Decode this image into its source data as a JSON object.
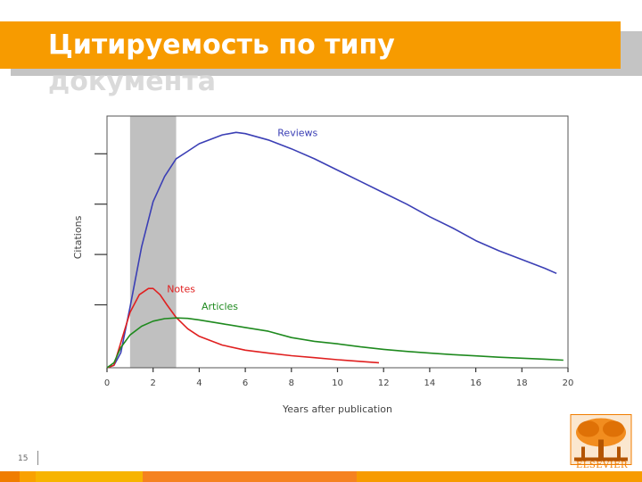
{
  "slide": {
    "title": "Цитируемость по типу",
    "title_overflow": "документа",
    "page_number": "15",
    "logo_text": "ELSEVIER"
  },
  "colors": {
    "accent": "#f79b00",
    "shadow": "#c4c4c4",
    "reviews": "#3b3fb5",
    "notes": "#e02020",
    "articles": "#1f8a1f",
    "highlight": "#c0c0c0"
  },
  "footer_colors": [
    "#f07d00",
    "#f9a100",
    "#f7b400",
    "#f58220",
    "#f79b00"
  ],
  "chart_data": {
    "type": "line",
    "xlabel": "Years after publication",
    "ylabel": "Citations",
    "xlim": [
      0,
      20
    ],
    "ylim": [
      0,
      100
    ],
    "x_ticks": [
      "0",
      "2",
      "4",
      "6",
      "8",
      "10",
      "12",
      "14",
      "16",
      "18",
      "20"
    ],
    "y_ticks_labeled": false,
    "shaded_region": [
      1,
      3
    ],
    "series": [
      {
        "name": "Reviews",
        "color": "#3b3fb5",
        "x": [
          0,
          0.3,
          0.6,
          1.0,
          1.5,
          2.0,
          2.5,
          3.0,
          3.5,
          4.0,
          5.0,
          5.6,
          6.0,
          7.0,
          8.0,
          9.0,
          10.0,
          11.0,
          12.0,
          13.0,
          14.0,
          15.0,
          16.0,
          17.0,
          18.0,
          19.0,
          19.5
        ],
        "y": [
          0,
          1,
          6,
          24,
          48,
          66,
          76,
          83,
          86,
          89,
          92.5,
          93.5,
          93,
          90.5,
          87,
          83,
          78.5,
          74,
          69.5,
          65,
          60,
          55.5,
          50.5,
          46.5,
          43,
          39.5,
          37.5
        ]
      },
      {
        "name": "Notes",
        "color": "#e02020",
        "x": [
          0,
          0.3,
          0.6,
          1.0,
          1.4,
          1.8,
          2.0,
          2.3,
          2.6,
          3.0,
          3.5,
          4.0,
          5.0,
          6.0,
          7.0,
          8.0,
          9.0,
          10.0,
          11.0,
          11.8
        ],
        "y": [
          0,
          1,
          10,
          22,
          29,
          31.5,
          31.5,
          29,
          25,
          20,
          15.5,
          12.5,
          9,
          7,
          5.8,
          4.8,
          4,
          3.2,
          2.5,
          2
        ]
      },
      {
        "name": "Articles",
        "color": "#1f8a1f",
        "x": [
          0,
          0.3,
          0.6,
          1.0,
          1.5,
          2.0,
          2.5,
          3.0,
          3.5,
          4.0,
          5.0,
          6.0,
          7.0,
          8.0,
          9.0,
          10.0,
          11.0,
          12.0,
          13.0,
          14.0,
          15.0,
          16.0,
          17.0,
          18.0,
          19.0,
          19.8
        ],
        "y": [
          0,
          2,
          8,
          13,
          16.5,
          18.5,
          19.5,
          19.8,
          19.6,
          19,
          17.5,
          16,
          14.5,
          12,
          10.5,
          9.5,
          8.3,
          7.3,
          6.5,
          5.8,
          5.2,
          4.7,
          4.2,
          3.8,
          3.4,
          3
        ]
      }
    ]
  }
}
